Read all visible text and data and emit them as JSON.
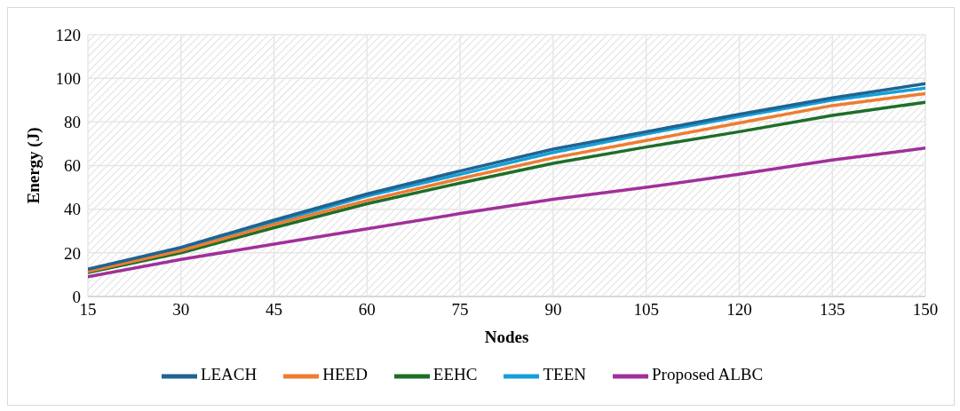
{
  "chart_data": {
    "type": "line",
    "xlabel": "Nodes",
    "ylabel": "Energy (J)",
    "x": [
      15,
      30,
      45,
      60,
      75,
      90,
      105,
      120,
      135,
      150
    ],
    "xlim": [
      15,
      150
    ],
    "xticks": [
      15,
      30,
      45,
      60,
      75,
      90,
      105,
      120,
      135,
      150
    ],
    "ylim": [
      0,
      120
    ],
    "yticks": [
      0,
      20,
      40,
      60,
      80,
      100,
      120
    ],
    "grid": true,
    "legend": "bottom",
    "marker": "none",
    "line_style": "solid",
    "series": [
      {
        "name": "LEACH",
        "color": "#1f6391",
        "values": [
          12.5,
          22.5,
          35,
          47,
          57.5,
          67.5,
          75.5,
          83.5,
          91,
          97.5
        ]
      },
      {
        "name": "HEED",
        "color": "#ed7d31",
        "values": [
          11.5,
          21,
          33,
          44,
          54,
          63.5,
          71.5,
          79.5,
          87.5,
          93
        ]
      },
      {
        "name": "EEHC",
        "color": "#1e6e28",
        "values": [
          11,
          20,
          31.5,
          42.5,
          52,
          61,
          68.5,
          75.5,
          83,
          89
        ]
      },
      {
        "name": "TEEN",
        "color": "#149fd8",
        "values": [
          12.5,
          22,
          34,
          46,
          56,
          66,
          74.5,
          82.5,
          90,
          95.5
        ]
      },
      {
        "name": "Proposed ALBC",
        "color": "#a0309a",
        "values": [
          9,
          17,
          24,
          31,
          38,
          44.5,
          50,
          56,
          62.5,
          68
        ]
      }
    ]
  }
}
